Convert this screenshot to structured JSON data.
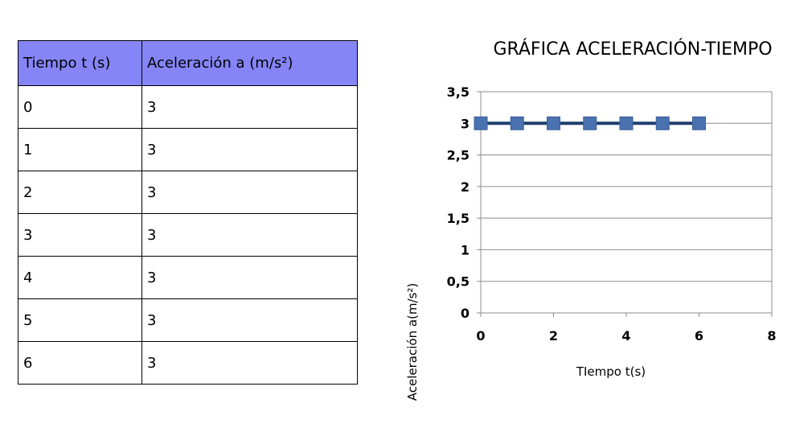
{
  "table": {
    "headers": [
      "Tiempo t (s)",
      "Aceleración a (m/s²)"
    ],
    "rows": [
      [
        "0",
        "3"
      ],
      [
        "1",
        "3"
      ],
      [
        "2",
        "3"
      ],
      [
        "3",
        "3"
      ],
      [
        "4",
        "3"
      ],
      [
        "5",
        "3"
      ],
      [
        "6",
        "3"
      ]
    ]
  },
  "chart_data": {
    "type": "line",
    "title": "GRÁFICA ACELERACIÓN-TIEMPO",
    "xlabel": "TIempo t(s)",
    "ylabel": "Aceleración a(m/s²)",
    "x": [
      0,
      1,
      2,
      3,
      4,
      5,
      6
    ],
    "series": [
      {
        "values": [
          3,
          3,
          3,
          3,
          3,
          3,
          3
        ]
      }
    ],
    "xlim": [
      0,
      8
    ],
    "ylim": [
      0,
      3.5
    ],
    "x_ticks": [
      "0",
      "2",
      "4",
      "6",
      "8"
    ],
    "y_ticks": [
      "0",
      "0,5",
      "1",
      "1,5",
      "2",
      "2,5",
      "3",
      "3,5"
    ],
    "grid": "horizontal",
    "legend": "none",
    "line_color": "#1f3f6f",
    "marker_color": "#4a72b0"
  }
}
